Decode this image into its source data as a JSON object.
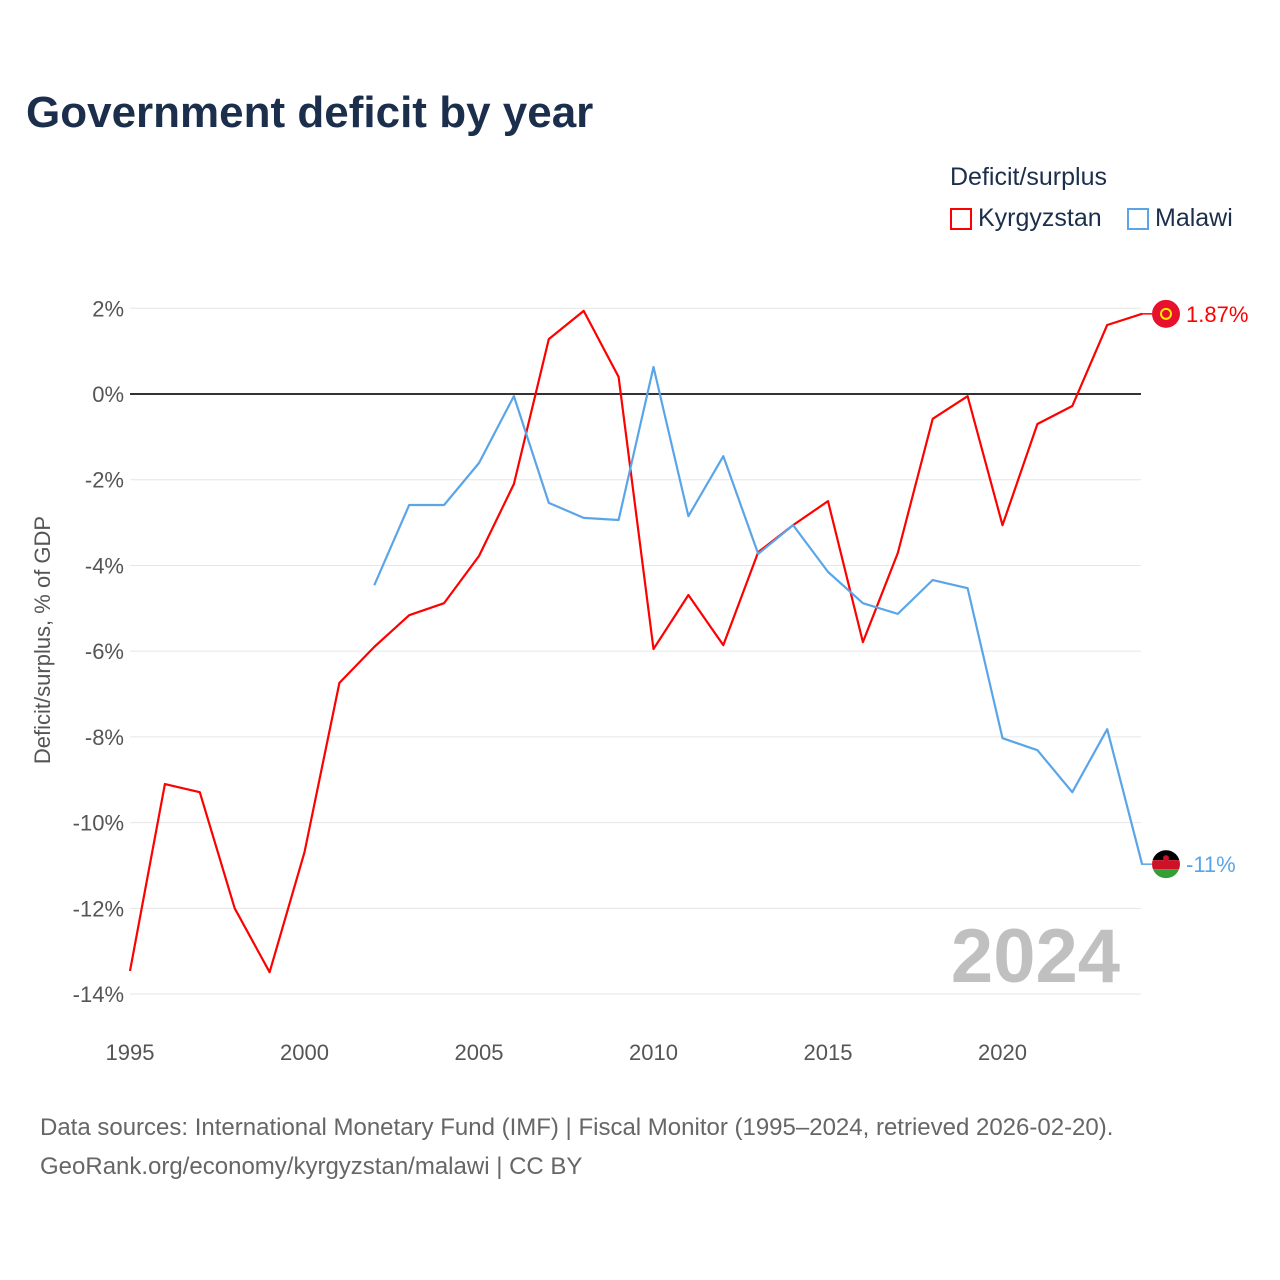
{
  "title": "Government deficit by year",
  "legend": {
    "title": "Deficit/surplus",
    "items": [
      {
        "name": "Kyrgyzstan",
        "color": "#ff0000"
      },
      {
        "name": "Malawi",
        "color": "#5aa5e8"
      }
    ]
  },
  "footer": {
    "line1": "Data sources: International Monetary Fund (IMF) | Fiscal Monitor (1995–2024, retrieved 2026-02-20).",
    "line2": "GeoRank.org/economy/kyrgyzstan/malawi | CC BY"
  },
  "chart_data": {
    "type": "line",
    "title": "Government deficit by year",
    "ylabel": "Deficit/surplus, % of GDP",
    "xlabel": "",
    "xlim": [
      1995,
      2024
    ],
    "ylim": [
      -14,
      2
    ],
    "xticks": [
      1995,
      2000,
      2005,
      2010,
      2015,
      2020
    ],
    "yticks": [
      2,
      0,
      -2,
      -4,
      -6,
      -8,
      -10,
      -12,
      -14
    ],
    "ytick_labels": [
      "2%",
      "0%",
      "-2%",
      "-4%",
      "-6%",
      "-8%",
      "-10%",
      "-12%",
      "-14%"
    ],
    "year_watermark": "2024",
    "series": [
      {
        "name": "Kyrgyzstan",
        "color": "#ff0000",
        "end_label": "1.87%",
        "x": [
          1995,
          1996,
          1997,
          1998,
          1999,
          2000,
          2001,
          2002,
          2003,
          2004,
          2005,
          2006,
          2007,
          2008,
          2009,
          2010,
          2011,
          2012,
          2013,
          2014,
          2015,
          2016,
          2017,
          2018,
          2019,
          2020,
          2021,
          2022,
          2023,
          2024
        ],
        "values": [
          -13.46,
          -9.1,
          -9.29,
          -12.0,
          -13.49,
          -10.69,
          -6.74,
          -5.9,
          -5.16,
          -4.88,
          -3.78,
          -2.1,
          1.28,
          1.94,
          0.4,
          -5.95,
          -4.69,
          -5.86,
          -3.69,
          -3.06,
          -2.5,
          -5.79,
          -3.71,
          -0.58,
          -0.05,
          -3.06,
          -0.7,
          -0.28,
          1.61,
          1.87
        ]
      },
      {
        "name": "Malawi",
        "color": "#5aa5e8",
        "end_label": "-11%",
        "x": [
          2002,
          2003,
          2004,
          2005,
          2006,
          2007,
          2008,
          2009,
          2010,
          2011,
          2012,
          2013,
          2014,
          2015,
          2016,
          2017,
          2018,
          2019,
          2020,
          2021,
          2022,
          2023,
          2024
        ],
        "values": [
          -4.46,
          -2.59,
          -2.59,
          -1.61,
          -0.05,
          -2.54,
          -2.89,
          -2.94,
          0.63,
          -2.85,
          -1.45,
          -3.73,
          -3.06,
          -4.15,
          -4.88,
          -5.13,
          -4.34,
          -4.53,
          -8.03,
          -8.31,
          -9.29,
          -7.82,
          -10.97
        ]
      }
    ]
  }
}
